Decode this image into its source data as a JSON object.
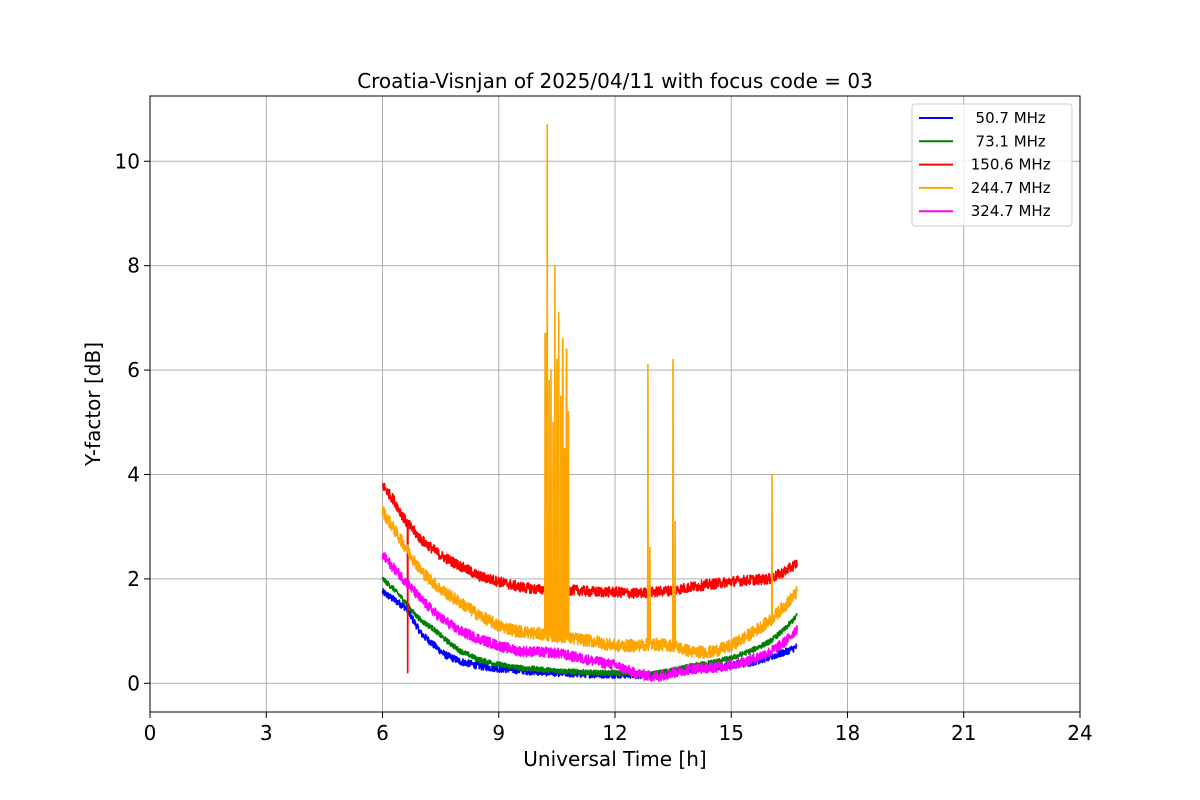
{
  "chart_data": {
    "type": "line",
    "title": "Croatia-Visnjan of 2025/04/11 with focus code = 03",
    "xlabel": "Universal Time [h]",
    "ylabel": "Y-factor [dB]",
    "xlim": [
      0,
      24
    ],
    "ylim": [
      -0.55,
      11.25
    ],
    "xticks": [
      0,
      3,
      6,
      9,
      12,
      15,
      18,
      21,
      24
    ],
    "yticks": [
      0,
      2,
      4,
      6,
      8,
      10
    ],
    "grid": true,
    "legend_position": "top-right",
    "series": [
      {
        "name": "  50.7 MHz",
        "color": "#0000ff",
        "noise": 0.07,
        "x": [
          6.0,
          6.3,
          6.6,
          6.8,
          7.0,
          7.3,
          7.6,
          8.0,
          8.5,
          9.0,
          9.5,
          10.0,
          10.5,
          11.0,
          11.5,
          12.0,
          12.5,
          13.0,
          13.5,
          14.0,
          14.5,
          15.0,
          15.5,
          16.0,
          16.4,
          16.7
        ],
        "y": [
          1.75,
          1.6,
          1.45,
          1.2,
          0.95,
          0.75,
          0.55,
          0.42,
          0.33,
          0.28,
          0.25,
          0.22,
          0.2,
          0.18,
          0.17,
          0.17,
          0.16,
          0.16,
          0.2,
          0.27,
          0.3,
          0.35,
          0.4,
          0.5,
          0.6,
          0.7
        ]
      },
      {
        "name": "  73.1 MHz",
        "color": "#008000",
        "noise": 0.05,
        "x": [
          6.0,
          6.3,
          6.6,
          6.8,
          7.0,
          7.3,
          7.6,
          8.0,
          8.5,
          9.0,
          9.5,
          10.0,
          10.5,
          11.0,
          11.5,
          12.0,
          12.5,
          13.0,
          13.5,
          14.0,
          14.5,
          15.0,
          15.5,
          16.0,
          16.4,
          16.7
        ],
        "y": [
          2.0,
          1.8,
          1.55,
          1.35,
          1.2,
          1.05,
          0.85,
          0.62,
          0.45,
          0.36,
          0.3,
          0.27,
          0.24,
          0.22,
          0.2,
          0.2,
          0.18,
          0.18,
          0.25,
          0.33,
          0.4,
          0.48,
          0.62,
          0.8,
          1.05,
          1.3
        ]
      },
      {
        "name": " 150.6 MHz",
        "color": "#ff0000",
        "noise": 0.1,
        "x": [
          6.0,
          6.3,
          6.6,
          7.0,
          7.5,
          8.0,
          8.5,
          9.0,
          9.5,
          10.0,
          10.5,
          11.0,
          11.5,
          12.0,
          12.5,
          13.0,
          13.5,
          14.0,
          14.5,
          15.0,
          15.5,
          16.0,
          16.4,
          16.7
        ],
        "y": [
          3.8,
          3.5,
          3.1,
          2.75,
          2.45,
          2.25,
          2.05,
          1.95,
          1.85,
          1.8,
          1.8,
          1.78,
          1.75,
          1.75,
          1.72,
          1.75,
          1.78,
          1.85,
          1.9,
          1.95,
          1.98,
          2.0,
          2.15,
          2.3
        ]
      },
      {
        "name": " 244.7 MHz",
        "color": "#ffa500",
        "noise": 0.12,
        "x": [
          6.0,
          6.3,
          6.6,
          7.0,
          7.5,
          8.0,
          8.5,
          9.0,
          9.5,
          10.0,
          10.5,
          11.0,
          11.5,
          12.0,
          12.5,
          13.0,
          13.5,
          14.0,
          14.5,
          15.0,
          15.5,
          16.0,
          16.4,
          16.7
        ],
        "y": [
          3.3,
          2.95,
          2.6,
          2.15,
          1.8,
          1.55,
          1.3,
          1.1,
          1.0,
          0.95,
          0.9,
          0.85,
          0.8,
          0.72,
          0.72,
          0.75,
          0.72,
          0.6,
          0.6,
          0.72,
          0.95,
          1.2,
          1.5,
          1.75
        ]
      },
      {
        "name": " 324.7 MHz",
        "color": "#ff00ff",
        "noise": 0.1,
        "x": [
          6.0,
          6.3,
          6.6,
          7.0,
          7.5,
          8.0,
          8.5,
          9.0,
          9.5,
          10.0,
          10.5,
          11.0,
          11.5,
          12.0,
          12.5,
          13.0,
          13.5,
          14.0,
          14.5,
          15.0,
          15.5,
          16.0,
          16.4,
          16.7
        ],
        "y": [
          2.45,
          2.2,
          1.95,
          1.6,
          1.25,
          1.0,
          0.85,
          0.72,
          0.62,
          0.6,
          0.58,
          0.5,
          0.42,
          0.35,
          0.2,
          0.12,
          0.2,
          0.28,
          0.3,
          0.35,
          0.45,
          0.6,
          0.8,
          1.05
        ]
      }
    ],
    "annotations": [
      {
        "series": " 244.7 MHz",
        "type": "spike",
        "x": [
          10.2,
          10.25,
          10.3,
          10.35,
          10.4,
          10.45,
          10.5,
          10.55,
          10.6,
          10.65,
          10.7,
          10.75,
          10.8,
          12.85,
          12.9,
          13.5,
          13.55,
          16.05
        ],
        "y": [
          6.7,
          10.7,
          5.8,
          6.0,
          5.0,
          8.0,
          6.2,
          7.1,
          5.5,
          6.6,
          4.5,
          6.4,
          5.2,
          6.1,
          2.6,
          6.2,
          3.1,
          4.0
        ]
      },
      {
        "series": " 150.6 MHz",
        "type": "spike",
        "x": [
          6.65
        ],
        "y": [
          0.2
        ]
      }
    ]
  }
}
